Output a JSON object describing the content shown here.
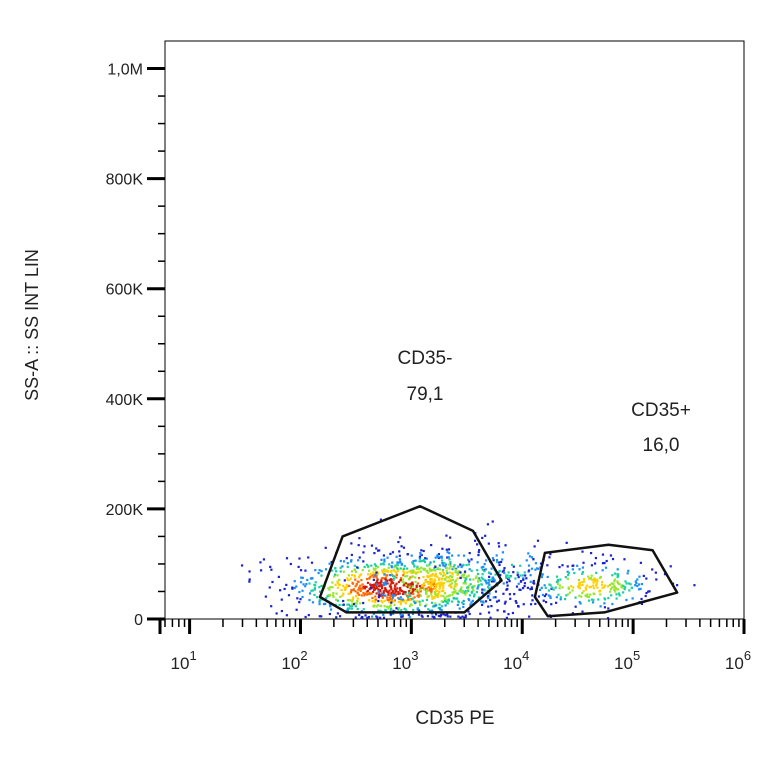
{
  "chart_data": {
    "type": "scatter",
    "subtype": "flow-cytometry-density-plot",
    "xlabel": "CD35 PE",
    "ylabel": "SS-A :: SS INT LIN",
    "x_scale": "log",
    "y_scale": "linear",
    "xlim": [
      6,
      1000000
    ],
    "ylim": [
      0,
      1050000
    ],
    "x_ticks": [
      {
        "value": 10,
        "base": "10",
        "exp": "1"
      },
      {
        "value": 100,
        "base": "10",
        "exp": "2"
      },
      {
        "value": 1000,
        "base": "10",
        "exp": "3"
      },
      {
        "value": 10000,
        "base": "10",
        "exp": "4"
      },
      {
        "value": 100000,
        "base": "10",
        "exp": "5"
      },
      {
        "value": 1000000,
        "base": "10",
        "exp": "6"
      }
    ],
    "y_ticks": [
      {
        "value": 0,
        "label": "0"
      },
      {
        "value": 200000,
        "label": "200K"
      },
      {
        "value": 400000,
        "label": "400K"
      },
      {
        "value": 600000,
        "label": "600K"
      },
      {
        "value": 800000,
        "label": "800K"
      },
      {
        "value": 1000000,
        "label": "1,0M"
      }
    ],
    "grid": false,
    "gates": [
      {
        "name": "CD35-",
        "value": "79,1",
        "polygon": [
          [
            150,
            40000
          ],
          [
            240,
            150000
          ],
          [
            1200,
            205000
          ],
          [
            3600,
            160000
          ],
          [
            6500,
            70000
          ],
          [
            3000,
            12000
          ],
          [
            260,
            12000
          ]
        ]
      },
      {
        "name": "CD35+",
        "value": "16,0",
        "polygon": [
          [
            13000,
            40000
          ],
          [
            16000,
            120000
          ],
          [
            60000,
            135000
          ],
          [
            150000,
            125000
          ],
          [
            250000,
            48000
          ],
          [
            55000,
            12000
          ],
          [
            17000,
            5000
          ]
        ]
      }
    ],
    "populations": [
      {
        "center": [
          650,
          60000
        ],
        "spread": [
          0.45,
          28000
        ],
        "share": 0.55
      },
      {
        "center": [
          1800,
          70000
        ],
        "spread": [
          0.35,
          32000
        ],
        "share": 0.24
      },
      {
        "center": [
          7000,
          90000
        ],
        "spread": [
          0.3,
          30000
        ],
        "share": 0.05
      },
      {
        "center": [
          40000,
          62000
        ],
        "spread": [
          0.3,
          22000
        ],
        "share": 0.16
      }
    ]
  }
}
